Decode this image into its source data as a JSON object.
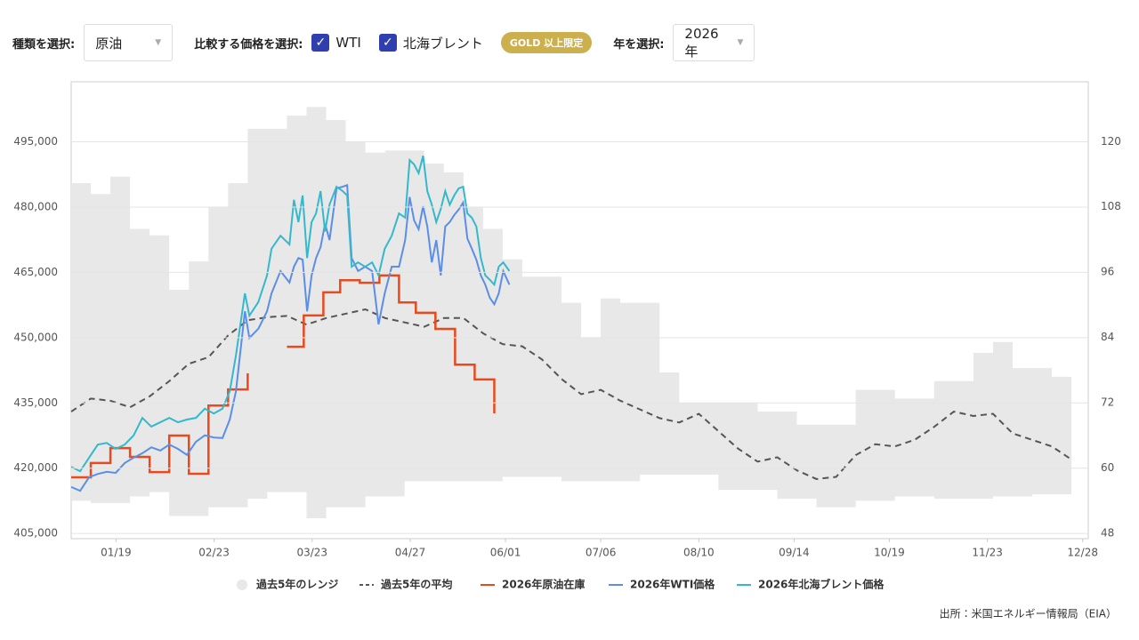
{
  "controls": {
    "kind_label": "種類を選択:",
    "kind_value": "原油",
    "compare_label": "比較する価格を選択:",
    "option_wti": "WTI",
    "option_brent": "北海ブレント",
    "badge": "GOLD 以上限定",
    "year_label": "年を選択:",
    "year_value": "2026年"
  },
  "chart_data": {
    "type": "line",
    "source": "出所：米国エネルギー情報局（EIA）",
    "xlim": [
      3,
      366
    ],
    "xticks": [
      {
        "value": 19,
        "label": "01/19"
      },
      {
        "value": 54,
        "label": "02/23"
      },
      {
        "value": 89,
        "label": "03/23"
      },
      {
        "value": 124,
        "label": "04/27"
      },
      {
        "value": 158,
        "label": "06/01"
      },
      {
        "value": 192,
        "label": "07/06"
      },
      {
        "value": 227,
        "label": "08/10"
      },
      {
        "value": 261,
        "label": "09/14"
      },
      {
        "value": 295,
        "label": "10/19"
      },
      {
        "value": 330,
        "label": "11/23"
      },
      {
        "value": 364,
        "label": "12/28"
      }
    ],
    "ylim": [
      403800,
      508800
    ],
    "yticks": [
      {
        "value": 405000,
        "label": "405,000"
      },
      {
        "value": 420000,
        "label": "420,000"
      },
      {
        "value": 435000,
        "label": "435,000"
      },
      {
        "value": 450000,
        "label": "450,000"
      },
      {
        "value": 465000,
        "label": "465,000"
      },
      {
        "value": 480000,
        "label": "480,000"
      },
      {
        "value": 495000,
        "label": "495,000"
      }
    ],
    "y2lim": [
      47,
      131
    ],
    "y2ticks": [
      48,
      60,
      72,
      84,
      96,
      108,
      120
    ],
    "grid": true,
    "series": [
      {
        "name": "過去5年のレンジ",
        "color": "#e8e8e8",
        "style": "range",
        "x": [
          3,
          10,
          17,
          24,
          31,
          38,
          45,
          52,
          59,
          66,
          73,
          80,
          87,
          94,
          101,
          108,
          115,
          122,
          129,
          136,
          143,
          150,
          157,
          164,
          171,
          178,
          185,
          192,
          199,
          206,
          213,
          220,
          227,
          234,
          241,
          248,
          255,
          262,
          269,
          276,
          283,
          290,
          297,
          304,
          311,
          318,
          325,
          332,
          339,
          346,
          353,
          360
        ],
        "high": [
          485500,
          483000,
          487000,
          475000,
          473500,
          461000,
          467500,
          480000,
          485500,
          498000,
          498000,
          501000,
          503000,
          500000,
          495000,
          492500,
          493000,
          493000,
          490000,
          488000,
          480000,
          475000,
          468000,
          464000,
          464000,
          458000,
          450000,
          459000,
          458000,
          458000,
          442000,
          435000,
          435000,
          435000,
          435000,
          433000,
          433000,
          430000,
          430000,
          430000,
          438000,
          438000,
          436000,
          436000,
          440000,
          440000,
          446500,
          449000,
          443000,
          443000,
          441000,
          431000
        ],
        "low": [
          412500,
          412000,
          412000,
          413500,
          414500,
          409000,
          409000,
          411000,
          411000,
          413000,
          414500,
          414500,
          408500,
          411000,
          411000,
          413500,
          413500,
          417000,
          417000,
          417000,
          417000,
          417000,
          418000,
          418000,
          418000,
          417000,
          417000,
          417000,
          417000,
          418500,
          418500,
          418500,
          418500,
          415000,
          415000,
          415000,
          413000,
          413000,
          411000,
          411000,
          412500,
          412500,
          413500,
          413500,
          413000,
          413000,
          413000,
          413500,
          413500,
          414000,
          414000,
          413000
        ]
      },
      {
        "name": "過去5年の平均",
        "color": "#555555",
        "style": "dashed",
        "x": [
          3,
          10,
          17,
          24,
          31,
          38,
          45,
          52,
          59,
          66,
          73,
          80,
          87,
          94,
          101,
          108,
          115,
          122,
          129,
          136,
          143,
          150,
          157,
          164,
          171,
          178,
          185,
          192,
          199,
          206,
          213,
          220,
          227,
          234,
          241,
          248,
          255,
          262,
          269,
          276,
          283,
          290,
          297,
          304,
          311,
          318,
          325,
          332,
          339,
          346,
          353,
          360
        ],
        "values": [
          433000,
          436000,
          435500,
          434000,
          436500,
          440000,
          444000,
          445500,
          450500,
          454000,
          454700,
          455000,
          453000,
          454500,
          455500,
          456500,
          454500,
          453500,
          452500,
          454500,
          454500,
          451000,
          448500,
          448000,
          445000,
          440500,
          437000,
          438000,
          435500,
          433500,
          431500,
          430500,
          432500,
          428500,
          424500,
          421500,
          422500,
          419500,
          417500,
          418000,
          423000,
          425500,
          425000,
          426500,
          429500,
          433000,
          432000,
          432500,
          428000,
          426500,
          425000,
          422000
        ]
      },
      {
        "name": "2026年原油在庫",
        "color": "#e8491d",
        "style": "step",
        "x": [
          3,
          10,
          17,
          24,
          31,
          38,
          45,
          52,
          59,
          66,
          73,
          80,
          86,
          93,
          99,
          106,
          113,
          120,
          126,
          133,
          140,
          147,
          154
        ],
        "values": [
          417900,
          421200,
          424600,
          422600,
          419100,
          427500,
          418700,
          434400,
          438100,
          441800,
          null,
          447900,
          455100,
          460400,
          463200,
          462600,
          464300,
          458100,
          455700,
          452000,
          443800,
          440400,
          432600
        ]
      },
      {
        "name": "2026年WTI価格",
        "color": "#5b8ee6",
        "style": "solid",
        "axis": "y2",
        "x": [
          3,
          6.2,
          9.4,
          12.5,
          15.7,
          18.9,
          22.1,
          25.3,
          28.4,
          31.6,
          34.8,
          38,
          41.1,
          44.3,
          47.5,
          50.7,
          53.9,
          57,
          59.6,
          61.8,
          65,
          66.6,
          69.8,
          72.9,
          74.5,
          77.7,
          80.9,
          82.5,
          84.1,
          85.6,
          87.2,
          88.8,
          90.4,
          92,
          93.6,
          95.2,
          97.7,
          99.9,
          101.5,
          103.1,
          105.4,
          107.9,
          110.4,
          112.7,
          114.9,
          117.4,
          120,
          122.2,
          123.8,
          125.4,
          127,
          128.6,
          130.1,
          131.7,
          133.3,
          134.9,
          136.5,
          138.1,
          139.7,
          141.3,
          142.9,
          144.4,
          146,
          147.6,
          149.2,
          150.8,
          152.4,
          154,
          155.6,
          157.2,
          159.4
        ],
        "values": [
          56.5,
          55.8,
          58.3,
          58.9,
          59.3,
          59.1,
          60.9,
          61.9,
          62.7,
          63.8,
          63.2,
          64.3,
          63.5,
          62.4,
          64.8,
          66.0,
          65.6,
          65.5,
          68.9,
          74.1,
          88.8,
          83.9,
          85.6,
          88.8,
          92.1,
          96.2,
          94.1,
          97.0,
          98.6,
          98.3,
          88.8,
          95.4,
          98.6,
          100.6,
          104.9,
          101.9,
          111.4,
          111.7,
          112.0,
          98.6,
          96.2,
          97.0,
          96.2,
          86.4,
          92.1,
          97.0,
          97.0,
          101.9,
          109.8,
          105.5,
          103.9,
          108.1,
          104.4,
          97.8,
          101.9,
          95.4,
          104.4,
          105.2,
          106.5,
          107.5,
          108.8,
          102.2,
          100.3,
          98.3,
          95.4,
          93.7,
          91.3,
          90.1,
          92.1,
          96.2,
          93.7
        ]
      },
      {
        "name": "2026年北海ブレント価格",
        "color": "#35b8cc",
        "style": "solid",
        "axis": "y2",
        "x": [
          3,
          6.2,
          9.4,
          12.5,
          15.7,
          18.9,
          22.1,
          25.3,
          28.4,
          31.6,
          34.8,
          38,
          41.1,
          44.3,
          47.5,
          50.7,
          53.9,
          57,
          59.6,
          61.8,
          65,
          66.6,
          69.8,
          72.9,
          74.5,
          77.7,
          80.9,
          82.5,
          84.1,
          85.6,
          87.2,
          88.8,
          90.4,
          92,
          93.6,
          95.2,
          97.7,
          99.9,
          101.5,
          103.1,
          105.4,
          107.9,
          110.4,
          112.7,
          114.9,
          117.4,
          120,
          122.2,
          123.8,
          125.4,
          127,
          128.6,
          130.1,
          131.7,
          133.3,
          134.9,
          136.5,
          138.1,
          139.7,
          141.3,
          142.9,
          144.4,
          146,
          147.6,
          149.2,
          150.8,
          152.4,
          154,
          155.6,
          157.2,
          159.4
        ],
        "values": [
          60.2,
          59.4,
          61.9,
          64.3,
          64.6,
          63.5,
          64.3,
          66.0,
          69.2,
          67.6,
          68.4,
          69.2,
          68.4,
          68.9,
          69.2,
          70.9,
          70.0,
          70.9,
          74.1,
          80.7,
          92.1,
          88.0,
          90.5,
          95.4,
          100.3,
          102.7,
          101.1,
          109.3,
          105.2,
          110.1,
          98.6,
          105.2,
          106.8,
          110.9,
          103.5,
          108.4,
          111.7,
          110.9,
          110.1,
          97.0,
          97.8,
          97.0,
          97.8,
          95.4,
          100.3,
          102.7,
          106.8,
          106.0,
          116.6,
          115.8,
          114.2,
          117.4,
          110.9,
          108.4,
          105.2,
          107.6,
          110.9,
          108.4,
          110.1,
          111.4,
          111.7,
          106.8,
          106.0,
          104.4,
          98.6,
          95.4,
          94.6,
          93.7,
          97.0,
          97.8,
          96.2
        ]
      }
    ]
  }
}
